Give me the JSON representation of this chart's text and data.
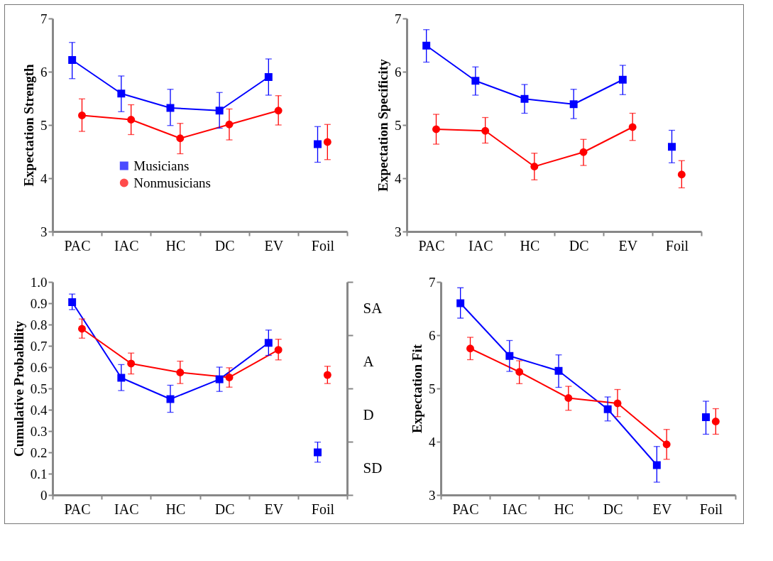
{
  "chart_data": [
    {
      "type": "line",
      "ylabel": "Expectation Strength",
      "categories": [
        "PAC",
        "IAC",
        "HC",
        "DC",
        "EV",
        "Foil"
      ],
      "ylim": [
        3,
        7
      ],
      "yticks": [
        3,
        4,
        5,
        6,
        7
      ],
      "legend": "bottom",
      "series": [
        {
          "name": "Musicians",
          "color": "#0000ff",
          "marker": "square",
          "values": [
            6.22,
            5.59,
            5.32,
            5.27,
            5.9,
            null
          ],
          "errors": [
            [
              5.87,
              6.55
            ],
            [
              5.25,
              5.92
            ],
            [
              4.99,
              5.67
            ],
            [
              4.94,
              5.61
            ],
            [
              5.56,
              6.24
            ],
            null
          ]
        },
        {
          "name": "Nonmusicians",
          "color": "#ff0000",
          "marker": "circle",
          "values": [
            5.18,
            5.1,
            4.75,
            5.01,
            5.27,
            null
          ],
          "errors": [
            [
              4.88,
              5.49
            ],
            [
              4.82,
              5.38
            ],
            [
              4.46,
              5.03
            ],
            [
              4.72,
              5.3
            ],
            [
              5.0,
              5.55
            ],
            null
          ]
        },
        {
          "type": "scatter",
          "color": "#0000ff",
          "marker": "square",
          "x": [
            "Foil"
          ],
          "values": [
            4.64
          ],
          "errors": [
            [
              4.3,
              4.97
            ]
          ]
        },
        {
          "type": "scatter",
          "color": "#ff0000",
          "marker": "circle",
          "x": [
            "Foil"
          ],
          "values": [
            4.68
          ],
          "errors": [
            [
              4.35,
              5.01
            ]
          ]
        }
      ]
    },
    {
      "type": "line",
      "ylabel": "Expectation Specificity",
      "categories": [
        "PAC",
        "IAC",
        "HC",
        "DC",
        "EV",
        "Foil"
      ],
      "ylim": [
        3,
        7
      ],
      "yticks": [
        3,
        4,
        5,
        6,
        7
      ],
      "series": [
        {
          "color": "#0000ff",
          "marker": "square",
          "values": [
            6.49,
            5.83,
            5.49,
            5.39,
            5.85,
            null
          ],
          "errors": [
            [
              6.18,
              6.79
            ],
            [
              5.56,
              6.09
            ],
            [
              5.22,
              5.76
            ],
            [
              5.12,
              5.67
            ],
            [
              5.57,
              6.12
            ],
            null
          ]
        },
        {
          "color": "#ff0000",
          "marker": "circle",
          "values": [
            4.92,
            4.89,
            4.22,
            4.49,
            4.96,
            null
          ],
          "errors": [
            [
              4.64,
              5.2
            ],
            [
              4.66,
              5.14
            ],
            [
              3.97,
              4.47
            ],
            [
              4.24,
              4.73
            ],
            [
              4.71,
              5.22
            ],
            null
          ]
        },
        {
          "type": "scatter",
          "color": "#0000ff",
          "marker": "square",
          "x": [
            "Foil"
          ],
          "values": [
            4.59
          ],
          "errors": [
            [
              4.29,
              4.9
            ]
          ]
        },
        {
          "type": "scatter",
          "color": "#ff0000",
          "marker": "circle",
          "x": [
            "Foil"
          ],
          "values": [
            4.07
          ],
          "errors": [
            [
              3.82,
              4.33
            ]
          ]
        }
      ]
    },
    {
      "type": "line",
      "ylabel": "Cumulative Probability",
      "categories": [
        "PAC",
        "IAC",
        "HC",
        "DC",
        "EV",
        "Foil"
      ],
      "ylim": [
        0,
        1
      ],
      "yticks": [
        0,
        {
          "value": 0.1,
          "label": "0.1"
        },
        {
          "value": 0.2,
          "label": "0.2"
        },
        {
          "value": 0.3,
          "label": "0.3"
        },
        {
          "value": 0.4,
          "label": "0.4"
        },
        {
          "value": 0.5,
          "label": "0.5"
        },
        {
          "value": 0.6,
          "label": "0.6"
        },
        {
          "value": 0.7,
          "label": "0.7"
        },
        {
          "value": 0.8,
          "label": "0.8"
        },
        {
          "value": 0.9,
          "label": "0.9"
        },
        {
          "value": 1,
          "label": "1.0"
        }
      ],
      "y2_categories": [
        "SA",
        "A",
        "D",
        "SD"
      ],
      "series": [
        {
          "color": "#0000ff",
          "marker": "square",
          "values": [
            0.905,
            0.55,
            0.45,
            0.543,
            0.714,
            null
          ],
          "errors": [
            [
              0.87,
              0.943
            ],
            [
              0.49,
              0.612
            ],
            [
              0.388,
              0.515
            ],
            [
              0.486,
              0.6
            ],
            [
              0.655,
              0.774
            ],
            null
          ]
        },
        {
          "color": "#ff0000",
          "marker": "circle",
          "values": [
            0.78,
            0.617,
            0.575,
            0.552,
            0.681,
            null
          ],
          "errors": [
            [
              0.736,
              0.826
            ],
            [
              0.568,
              0.666
            ],
            [
              0.523,
              0.628
            ],
            [
              0.506,
              0.597
            ],
            [
              0.634,
              0.731
            ],
            null
          ]
        },
        {
          "type": "scatter",
          "color": "#0000ff",
          "marker": "square",
          "x": [
            "Foil"
          ],
          "values": [
            0.2
          ],
          "errors": [
            [
              0.154,
              0.248
            ]
          ]
        },
        {
          "type": "scatter",
          "color": "#ff0000",
          "marker": "circle",
          "x": [
            "Foil"
          ],
          "values": [
            0.563
          ],
          "errors": [
            [
              0.523,
              0.604
            ]
          ]
        }
      ]
    },
    {
      "type": "line",
      "ylabel": "Expectation Fit",
      "categories": [
        "PAC",
        "IAC",
        "HC",
        "DC",
        "EV",
        "Foil"
      ],
      "ylim": [
        3,
        7
      ],
      "yticks": [
        3,
        4,
        5,
        6,
        7
      ],
      "series": [
        {
          "color": "#0000ff",
          "marker": "square",
          "values": [
            6.6,
            5.61,
            5.33,
            4.61,
            3.56,
            null
          ],
          "errors": [
            [
              6.32,
              6.89
            ],
            [
              5.32,
              5.9
            ],
            [
              5.02,
              5.63
            ],
            [
              4.39,
              4.84
            ],
            [
              3.24,
              3.91
            ],
            null
          ]
        },
        {
          "color": "#ff0000",
          "marker": "circle",
          "values": [
            5.75,
            5.31,
            4.82,
            4.72,
            3.95,
            null
          ],
          "errors": [
            [
              5.54,
              5.96
            ],
            [
              5.09,
              5.52
            ],
            [
              4.59,
              5.04
            ],
            [
              4.47,
              4.98
            ],
            [
              3.67,
              4.23
            ],
            null
          ]
        },
        {
          "type": "scatter",
          "color": "#0000ff",
          "marker": "square",
          "x": [
            "Foil"
          ],
          "values": [
            4.46
          ],
          "errors": [
            [
              4.14,
              4.76
            ]
          ]
        },
        {
          "type": "scatter",
          "color": "#ff0000",
          "marker": "circle",
          "x": [
            "Foil"
          ],
          "values": [
            4.38
          ],
          "errors": [
            [
              4.14,
              4.62
            ]
          ]
        }
      ]
    }
  ]
}
